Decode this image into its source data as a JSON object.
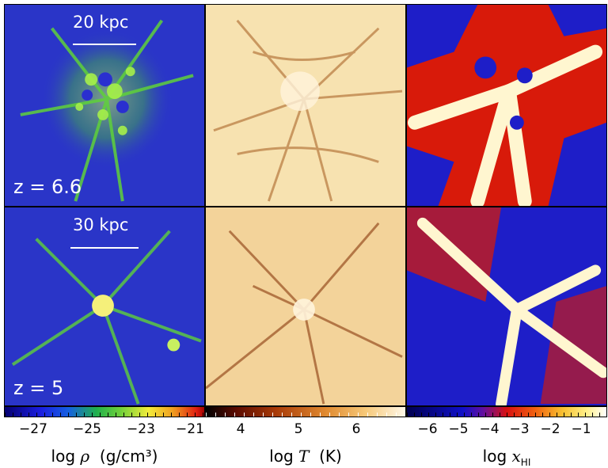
{
  "rows": [
    {
      "scale_label": "20 kpc",
      "redshift_label": "z = 6.6"
    },
    {
      "scale_label": "30 kpc",
      "redshift_label": "z = 5"
    }
  ],
  "colorbars": [
    {
      "name": "density",
      "ticks": [
        "−27",
        "−25",
        "−23",
        "−21"
      ],
      "axis_label_prefix": "log",
      "axis_symbol": "ρ",
      "axis_unit": "(g/cm³)"
    },
    {
      "name": "temperature",
      "ticks": [
        "4",
        "5",
        "6"
      ],
      "axis_label_prefix": "log",
      "axis_symbol": "T",
      "axis_unit": "(K)"
    },
    {
      "name": "neutral-fraction",
      "ticks": [
        "−6",
        "−5",
        "−4",
        "−3",
        "−2",
        "−1"
      ],
      "axis_label_prefix": "log",
      "axis_symbol": "x",
      "axis_subscript": "HI"
    }
  ],
  "colors": {
    "density_bg": "#2a2fd0",
    "density_fil": "#5fd13a",
    "density_core": "#f5f07a",
    "temp_bg": "#f7dfa8",
    "temp_fil": "#8a3a0e",
    "hi_bg": "#1e1ec8",
    "hi_mid": "#d81a0a",
    "hi_core": "#fff6d0"
  }
}
